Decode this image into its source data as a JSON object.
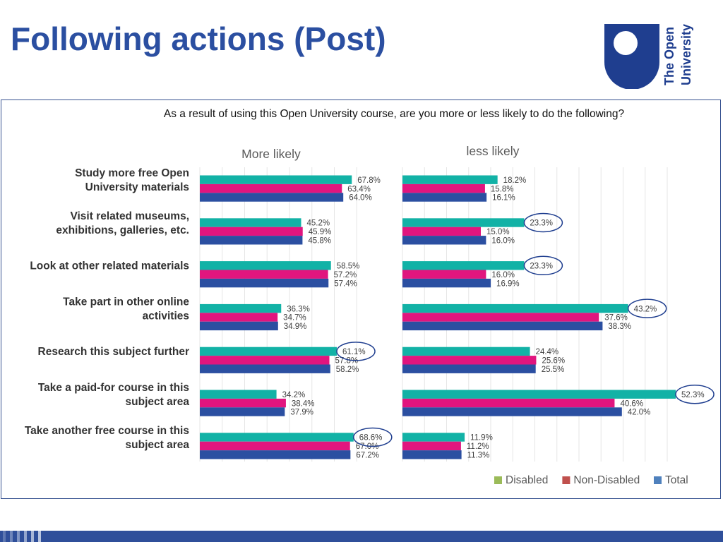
{
  "title": "Following actions (Post)",
  "logo": {
    "text_line1": "The Open",
    "text_line2": "University",
    "color": "#1f3e8f"
  },
  "chart_data": {
    "type": "bar",
    "orientation": "horizontal",
    "question": "As a result of using this Open University course, are you more or less likely to do the following?",
    "categories": [
      [
        "Study more free Open",
        "University materials"
      ],
      [
        "Visit related museums,",
        "exhibitions, galleries, etc."
      ],
      [
        "Look at other related materials"
      ],
      [
        "Take part in other online",
        "activities"
      ],
      [
        "Research this subject further"
      ],
      [
        "Take a paid-for course in this",
        "subject area"
      ],
      [
        "Take another free course in this",
        "subject area"
      ]
    ],
    "panels": [
      {
        "title": "More likely",
        "xlim": [
          0,
          100
        ],
        "series": [
          {
            "name": "Disabled",
            "color": "#12b2a6",
            "values": [
              67.8,
              45.2,
              58.5,
              36.3,
              61.1,
              34.2,
              68.6
            ]
          },
          {
            "name": "Non-Disabled",
            "color": "#e1157e",
            "values": [
              63.4,
              45.9,
              57.2,
              34.7,
              57.8,
              38.4,
              67.0
            ]
          },
          {
            "name": "Total",
            "color": "#2b4fa1",
            "values": [
              64.0,
              45.8,
              57.4,
              34.9,
              58.2,
              37.9,
              67.2
            ]
          }
        ],
        "highlights": [
          {
            "category": 4,
            "series": 0
          },
          {
            "category": 6,
            "series": 0
          }
        ]
      },
      {
        "title": "less likely",
        "xlim": [
          0,
          60
        ],
        "series": [
          {
            "name": "Disabled",
            "color": "#12b2a6",
            "values": [
              18.2,
              23.3,
              23.3,
              43.2,
              24.4,
              52.3,
              11.9
            ]
          },
          {
            "name": "Non-Disabled",
            "color": "#e1157e",
            "values": [
              15.8,
              15.0,
              16.0,
              37.6,
              25.6,
              40.6,
              11.2
            ]
          },
          {
            "name": "Total",
            "color": "#2b4fa1",
            "values": [
              16.1,
              16.0,
              16.9,
              38.3,
              25.5,
              42.0,
              11.3
            ]
          }
        ],
        "highlights": [
          {
            "category": 1,
            "series": 0
          },
          {
            "category": 2,
            "series": 0
          },
          {
            "category": 3,
            "series": 0
          },
          {
            "category": 5,
            "series": 0
          }
        ]
      }
    ],
    "value_suffix": "%",
    "value_decimals": 1,
    "grid": true,
    "legend": {
      "placement": "bottom-right",
      "entries": [
        {
          "label": "Disabled",
          "color": "#9bbb59"
        },
        {
          "label": "Non-Disabled",
          "color": "#c0504d"
        },
        {
          "label": "Total",
          "color": "#4f81bd"
        }
      ]
    }
  },
  "footer_bar_color": "#2f4f9a"
}
